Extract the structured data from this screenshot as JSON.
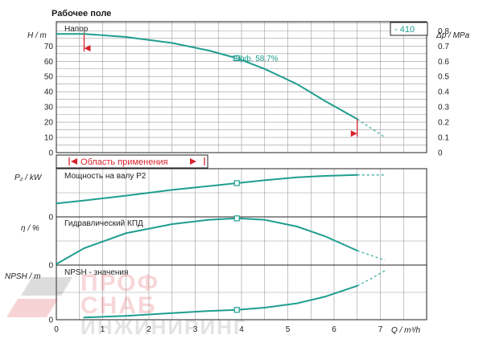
{
  "chart_data": {
    "type": "line",
    "title": "Рабочее поле",
    "model_label": "- 410",
    "xlabel": "Q / m³/h",
    "xlim": [
      0,
      8
    ],
    "x_ticks": [
      0,
      1,
      2,
      3,
      4,
      5,
      6,
      7
    ],
    "range_label": "Область применения",
    "range_bounds": [
      0.6,
      6.5
    ],
    "panels": [
      {
        "name": "head",
        "label": "Напор",
        "ylabel": "H / m",
        "ylabel_right": "Δp / MPa",
        "ylim": [
          0,
          86
        ],
        "y_ticks": [
          0,
          10,
          20,
          30,
          40,
          50,
          60,
          70
        ],
        "y_ticks_right": [
          0,
          0.1,
          0.2,
          0.3,
          0.4,
          0.5,
          0.6,
          0.7,
          0.8
        ],
        "series": {
          "x": [
            0,
            0.6,
            1.5,
            2.5,
            3.3,
            3.9,
            4.5,
            5.2,
            5.8,
            6.5
          ],
          "y": [
            78,
            78,
            76,
            72,
            67,
            62,
            55,
            45,
            34,
            22
          ],
          "ext_x": [
            6.5,
            6.8,
            7.1
          ],
          "ext_y": [
            22,
            16,
            10
          ]
        },
        "duty_point": {
          "x": 3.9,
          "y": 62
        },
        "annotation": "Эфф. 58.7%"
      },
      {
        "name": "power",
        "label": "Мощность на валу P2",
        "ylabel": "P₂ / kW",
        "ylim": [
          0,
          1
        ],
        "series": {
          "x": [
            0,
            0.6,
            1.5,
            2.5,
            3.3,
            3.9,
            4.5,
            5.2,
            5.8,
            6.5
          ],
          "y": [
            0.28,
            0.34,
            0.44,
            0.56,
            0.64,
            0.7,
            0.76,
            0.82,
            0.85,
            0.87
          ],
          "ext_x": [
            6.5,
            6.8,
            7.1
          ],
          "ext_y": [
            0.87,
            0.87,
            0.87
          ]
        },
        "duty_point": {
          "x": 3.9,
          "y": 0.7
        }
      },
      {
        "name": "efficiency",
        "label": "Гидравлический КПД",
        "ylabel": "η / %",
        "ylim": [
          0,
          1
        ],
        "series": {
          "x": [
            0,
            0.6,
            1.5,
            2.5,
            3.3,
            3.9,
            4.5,
            5.2,
            5.8,
            6.5
          ],
          "y": [
            0.02,
            0.35,
            0.66,
            0.85,
            0.94,
            0.97,
            0.94,
            0.8,
            0.6,
            0.3
          ],
          "ext_x": [
            6.5,
            6.8,
            7.1
          ],
          "ext_y": [
            0.3,
            0.2,
            0.1
          ]
        },
        "duty_point": {
          "x": 3.9,
          "y": 0.97
        }
      },
      {
        "name": "npsh",
        "label": "NPSH - значения",
        "ylabel": "NPSH / m",
        "ylim": [
          0,
          1
        ],
        "series": {
          "x": [
            0.6,
            1.5,
            2.5,
            3.3,
            3.9,
            4.5,
            5.2,
            5.8,
            6.5
          ],
          "y": [
            0.04,
            0.07,
            0.12,
            0.16,
            0.18,
            0.22,
            0.3,
            0.42,
            0.62
          ],
          "ext_x": [
            6.5,
            6.8,
            7.1
          ],
          "ext_y": [
            0.62,
            0.75,
            0.9
          ]
        },
        "duty_point": {
          "x": 3.9,
          "y": 0.18
        }
      }
    ]
  },
  "watermark": {
    "line1": "ПРОФ",
    "line2": "СНАБ",
    "line3": "ИНЖИНИРИНГ"
  }
}
